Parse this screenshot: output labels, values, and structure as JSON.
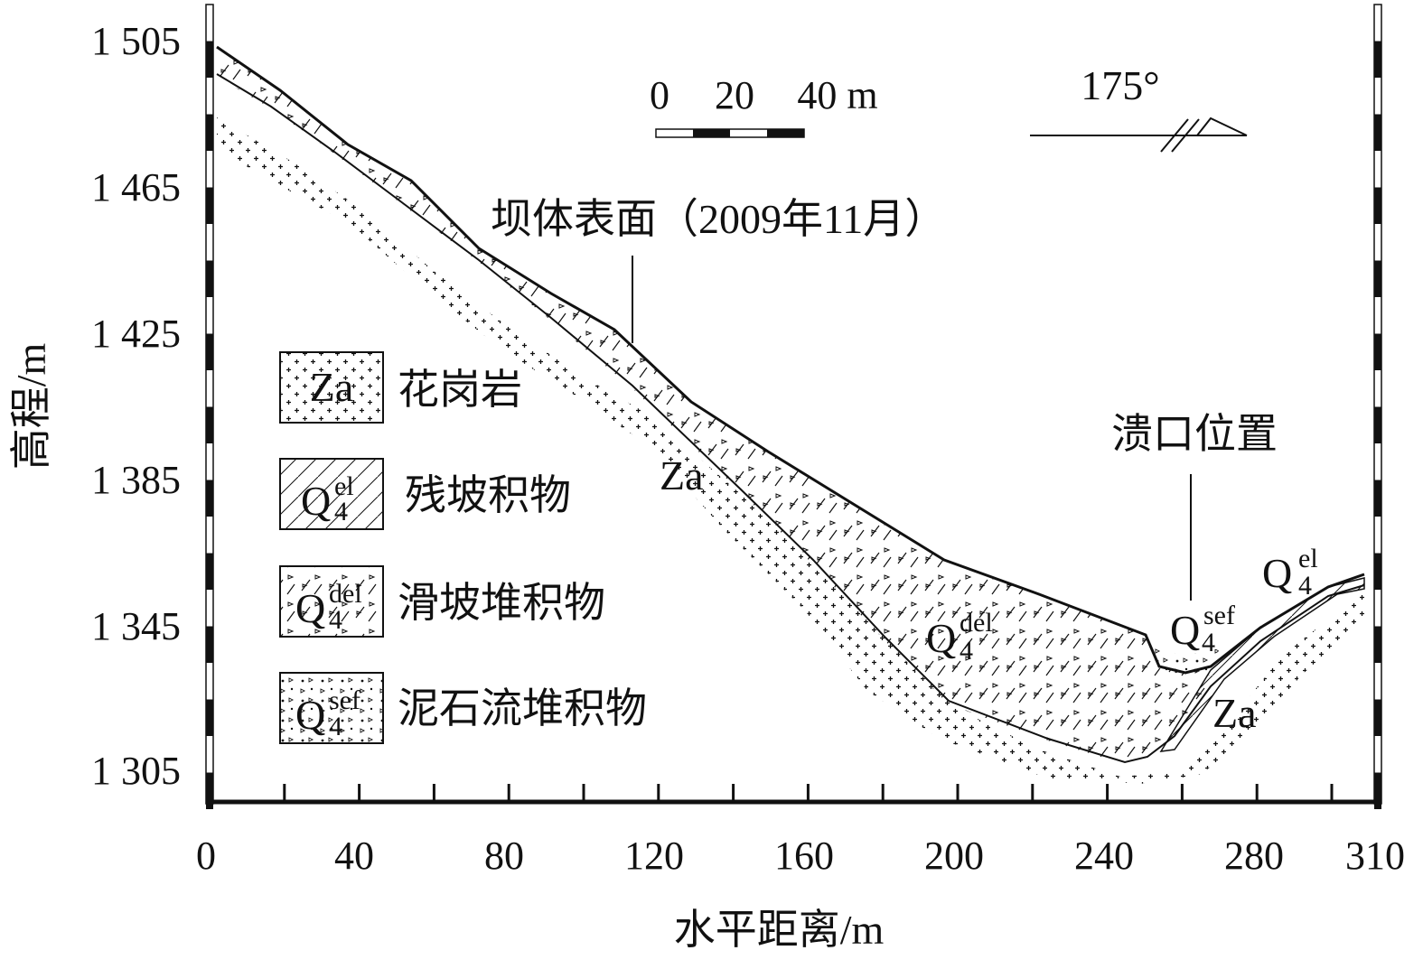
{
  "figure": {
    "y_axis_title": "高程/m",
    "x_axis_title": "水平距离/m",
    "y_ticks": [
      "1 505",
      "1 465",
      "1 425",
      "1 385",
      "1 345",
      "1 305"
    ],
    "x_ticks": [
      "0",
      "40",
      "80",
      "120",
      "160",
      "200",
      "240",
      "280",
      "310"
    ],
    "scale_bar": {
      "labels": [
        "0",
        "20",
        "40 m"
      ]
    },
    "orientation": "175°",
    "annotations": {
      "dam_surface": "坝体表面（2009年11月）",
      "breach": "溃口位置"
    },
    "section_labels": {
      "za_upper": "Za",
      "za_lower": "Za",
      "del": {
        "base": "Q",
        "sup": "del",
        "sub": "4"
      },
      "sef": {
        "base": "Q",
        "sup": "sef",
        "sub": "4"
      },
      "el": {
        "base": "Q",
        "sup": "el",
        "sub": "4"
      }
    },
    "legend": [
      {
        "symbol": "Za",
        "label": "花岗岩",
        "pattern": "granite"
      },
      {
        "symbol": "Q",
        "sup": "el",
        "sub": "4",
        "label": "残坡积物",
        "pattern": "eluvial"
      },
      {
        "symbol": "Q",
        "sup": "del",
        "sub": "4",
        "label": "滑坡堆积物",
        "pattern": "landslide"
      },
      {
        "symbol": "Q",
        "sup": "sef",
        "sub": "4",
        "label": "泥石流堆积物",
        "pattern": "debris"
      }
    ]
  }
}
